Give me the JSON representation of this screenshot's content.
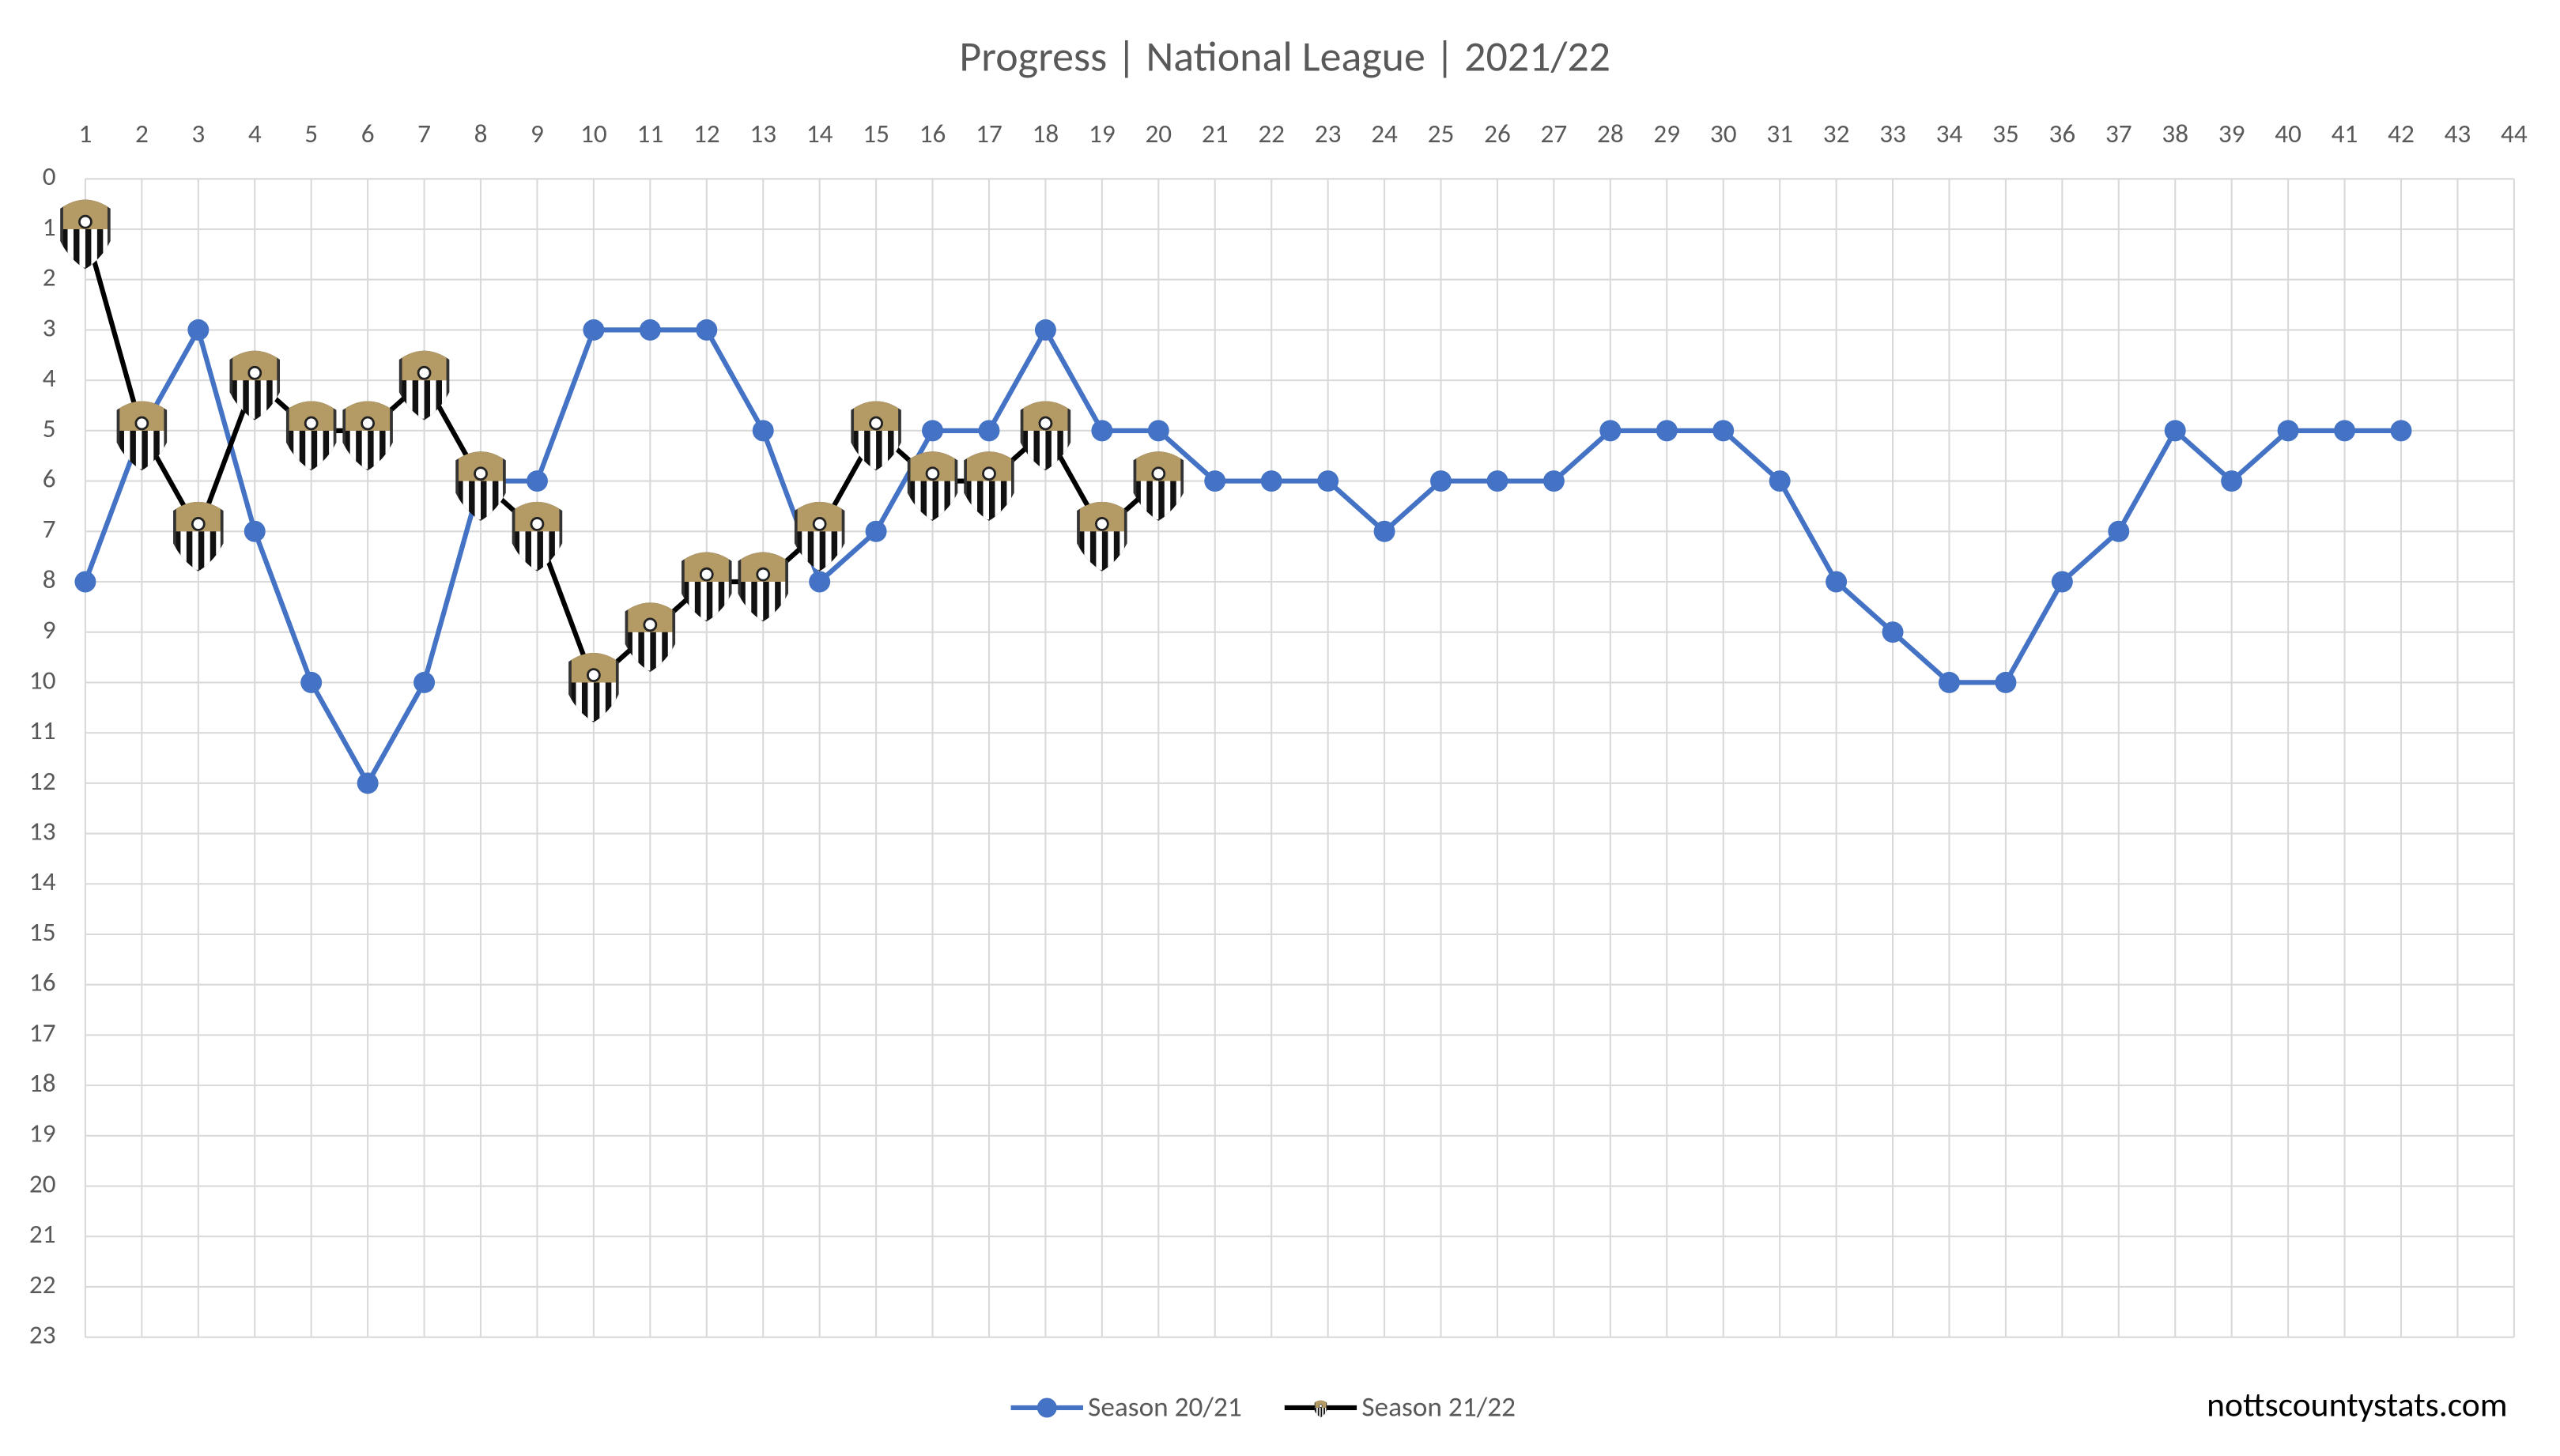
{
  "chart_data": {
    "type": "line",
    "title": "Progress | National League | 2021/22",
    "x": [
      1,
      2,
      3,
      4,
      5,
      6,
      7,
      8,
      9,
      10,
      11,
      12,
      13,
      14,
      15,
      16,
      17,
      18,
      19,
      20,
      21,
      22,
      23,
      24,
      25,
      26,
      27,
      28,
      29,
      30,
      31,
      32,
      33,
      34,
      35,
      36,
      37,
      38,
      39,
      40,
      41,
      42,
      43,
      44
    ],
    "series": [
      {
        "name": "Season 20/21",
        "color": "#4472c4",
        "marker": "circle",
        "values": [
          8,
          5,
          3,
          7,
          10,
          12,
          10,
          6,
          6,
          3,
          3,
          3,
          5,
          8,
          7,
          5,
          5,
          3,
          5,
          5,
          6,
          6,
          6,
          7,
          6,
          6,
          6,
          5,
          5,
          5,
          6,
          8,
          9,
          10,
          10,
          8,
          7,
          5,
          6,
          5,
          5,
          5,
          null,
          null
        ]
      },
      {
        "name": "Season 21/22",
        "color": "#000000",
        "marker": "badge",
        "values": [
          1,
          5,
          7,
          4,
          5,
          5,
          4,
          6,
          7,
          10,
          9,
          8,
          8,
          7,
          5,
          6,
          6,
          5,
          7,
          6,
          null,
          null,
          null,
          null,
          null,
          null,
          null,
          null,
          null,
          null,
          null,
          null,
          null,
          null,
          null,
          null,
          null,
          null,
          null,
          null,
          null,
          null,
          null,
          null
        ]
      }
    ],
    "xlim": [
      1,
      44
    ],
    "xticks": [
      1,
      2,
      3,
      4,
      5,
      6,
      7,
      8,
      9,
      10,
      11,
      12,
      13,
      14,
      15,
      16,
      17,
      18,
      19,
      20,
      21,
      22,
      23,
      24,
      25,
      26,
      27,
      28,
      29,
      30,
      31,
      32,
      33,
      34,
      35,
      36,
      37,
      38,
      39,
      40,
      41,
      42,
      43,
      44
    ],
    "ylim": [
      0,
      23
    ],
    "yticks": [
      0,
      1,
      2,
      3,
      4,
      5,
      6,
      7,
      8,
      9,
      10,
      11,
      12,
      13,
      14,
      15,
      16,
      17,
      18,
      19,
      20,
      21,
      22,
      23
    ],
    "y_inverted": true,
    "grid": true,
    "legend": "bottom",
    "watermark": "nottscountystats.com"
  }
}
